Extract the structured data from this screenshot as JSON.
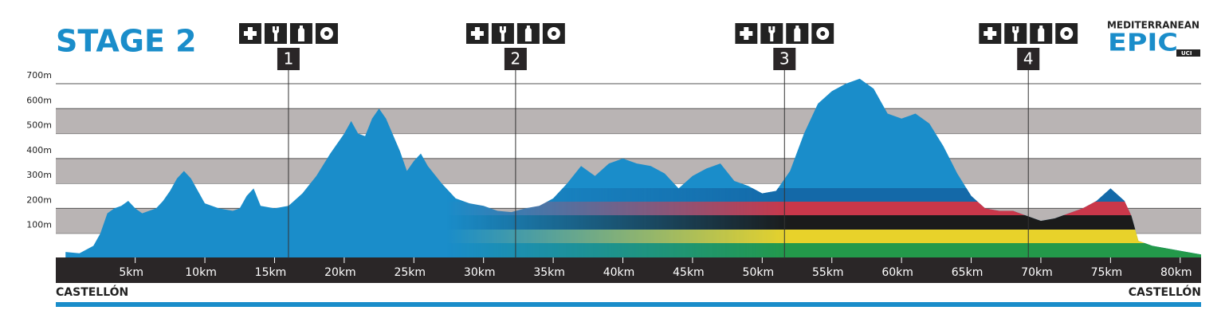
{
  "chart_data": {
    "type": "area",
    "title": "STAGE 2",
    "color": "#1a8dca",
    "x": [
      0,
      1,
      2,
      2.5,
      3,
      3.5,
      4,
      4.5,
      5,
      5.5,
      6,
      6.5,
      7,
      7.5,
      8,
      8.5,
      9,
      9.5,
      10,
      11,
      12,
      12.5,
      13,
      13.5,
      14,
      15,
      16,
      17,
      18,
      19,
      20,
      20.5,
      21,
      21.5,
      22,
      22.5,
      23,
      24,
      24.5,
      25,
      25.5,
      26,
      27,
      28,
      29,
      30,
      31,
      32,
      33,
      34,
      35,
      36,
      37,
      38,
      39,
      40,
      41,
      42,
      43,
      44,
      45,
      46,
      47,
      48,
      49,
      50,
      51,
      52,
      53,
      54,
      55,
      56,
      57,
      58,
      59,
      60,
      61,
      62,
      63,
      64,
      65,
      66,
      67,
      68,
      69,
      70,
      71,
      72,
      73,
      74,
      75,
      76,
      76.5,
      77,
      78,
      79,
      80,
      81,
      81.5
    ],
    "values": [
      25,
      20,
      50,
      100,
      180,
      200,
      210,
      230,
      200,
      180,
      190,
      200,
      230,
      270,
      320,
      350,
      320,
      270,
      220,
      200,
      190,
      200,
      250,
      280,
      210,
      200,
      210,
      260,
      330,
      420,
      500,
      550,
      500,
      490,
      560,
      600,
      560,
      430,
      350,
      390,
      420,
      370,
      300,
      240,
      220,
      210,
      190,
      185,
      200,
      210,
      240,
      300,
      370,
      330,
      380,
      400,
      380,
      370,
      340,
      280,
      330,
      360,
      380,
      310,
      290,
      260,
      270,
      350,
      500,
      620,
      670,
      700,
      720,
      680,
      580,
      560,
      580,
      540,
      450,
      340,
      250,
      200,
      190,
      190,
      170,
      150,
      160,
      180,
      200,
      230,
      280,
      230,
      170,
      70,
      50,
      40,
      30,
      20,
      15
    ],
    "xlim": [
      -0.7,
      81.5
    ],
    "ylim": [
      0,
      700
    ],
    "xticks": [
      {
        "value": 5,
        "label": "5km"
      },
      {
        "value": 10,
        "label": "10km"
      },
      {
        "value": 15,
        "label": "15km"
      },
      {
        "value": 20,
        "label": "20km"
      },
      {
        "value": 25,
        "label": "25km"
      },
      {
        "value": 30,
        "label": "30km"
      },
      {
        "value": 35,
        "label": "35km"
      },
      {
        "value": 40,
        "label": "40km"
      },
      {
        "value": 45,
        "label": "45km"
      },
      {
        "value": 50,
        "label": "50km"
      },
      {
        "value": 55,
        "label": "55km"
      },
      {
        "value": 60,
        "label": "60km"
      },
      {
        "value": 65,
        "label": "65km"
      },
      {
        "value": 70,
        "label": "70km"
      },
      {
        "value": 75,
        "label": "75km"
      },
      {
        "value": 80,
        "label": "80km"
      }
    ],
    "yticks": [
      {
        "value": 100,
        "label": "100m"
      },
      {
        "value": 200,
        "label": "200m"
      },
      {
        "value": 300,
        "label": "300m"
      },
      {
        "value": 400,
        "label": "400m"
      },
      {
        "value": 500,
        "label": "500m"
      },
      {
        "value": 600,
        "label": "600m"
      },
      {
        "value": 700,
        "label": "700m"
      }
    ],
    "feed_zones": [
      {
        "label": "1",
        "x": 16
      },
      {
        "label": "2",
        "x": 32.3
      },
      {
        "label": "3",
        "x": 51.6
      },
      {
        "label": "4",
        "x": 69.1
      }
    ],
    "start": "CASTELLÓN",
    "finish": "CASTELLÓN"
  },
  "logo": {
    "top": "MEDITERRANEAN",
    "main": "EPIC",
    "badge": "UCI"
  }
}
